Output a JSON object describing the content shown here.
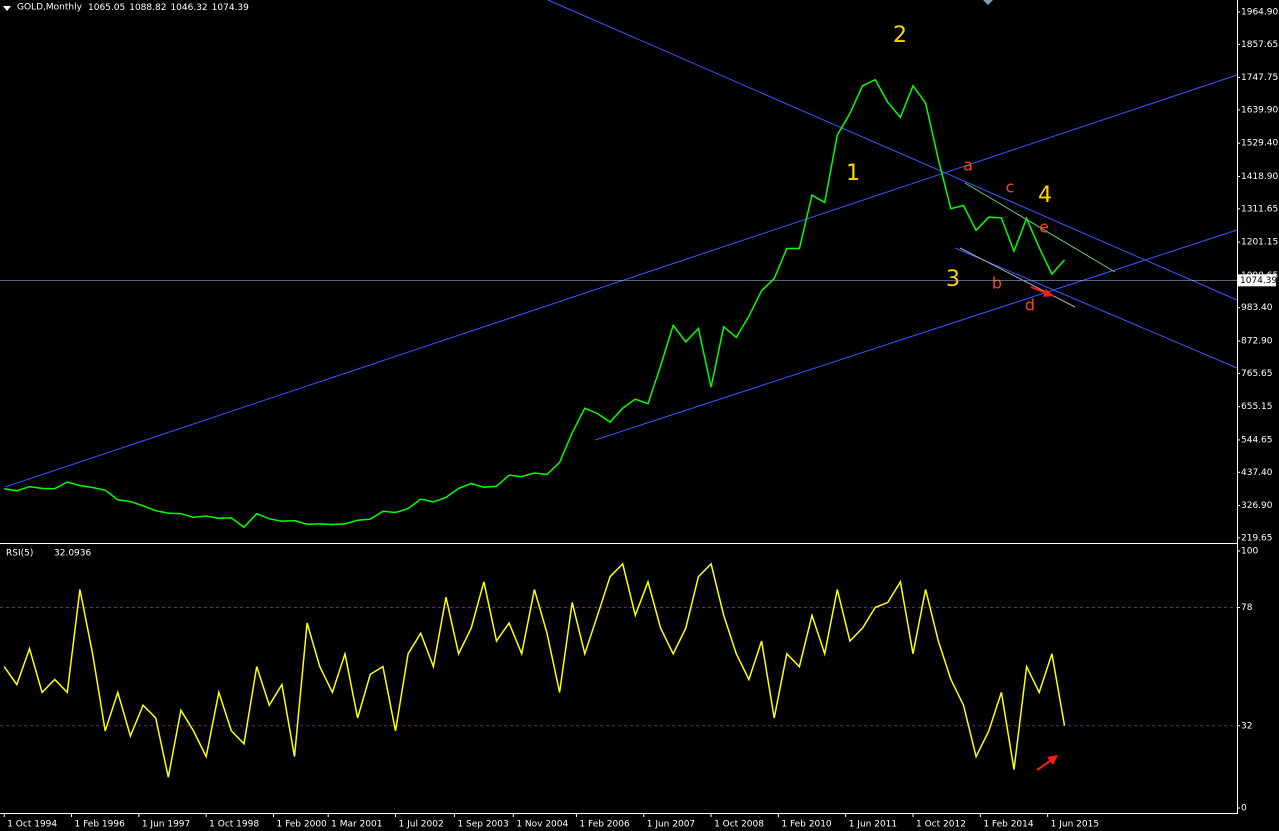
{
  "chart_data": [
    {
      "type": "line",
      "title": "GOLD,Monthly",
      "ohlc": [
        1065.05,
        1088.82,
        1046.32,
        1074.39
      ],
      "x": [
        0,
        3,
        6,
        9,
        12,
        15,
        18,
        21,
        24,
        27,
        30,
        33,
        36,
        39,
        42,
        45,
        48,
        51,
        54,
        57,
        60,
        63,
        66,
        69,
        72,
        75,
        78,
        81,
        84,
        87,
        90,
        93,
        96,
        99,
        102,
        105,
        108,
        111,
        114,
        117,
        120,
        123,
        126,
        129,
        132,
        135,
        138,
        141,
        144,
        147,
        150,
        153,
        156,
        159,
        162,
        165,
        168,
        171,
        174,
        177,
        180,
        183,
        186,
        189,
        192,
        195,
        198,
        201,
        204,
        207,
        210,
        213,
        216,
        219,
        222,
        225,
        228,
        231,
        234,
        237,
        240,
        243,
        246,
        249,
        252
      ],
      "series": [
        {
          "color": "#00ff00",
          "values": [
            383,
            376,
            390,
            384,
            383,
            405,
            393,
            387,
            378,
            346,
            340,
            326,
            310,
            302,
            300,
            288,
            292,
            285,
            286,
            255,
            300,
            283,
            275,
            277,
            265,
            266,
            264,
            266,
            278,
            282,
            308,
            304,
            317,
            348,
            339,
            354,
            384,
            400,
            388,
            391,
            428,
            423,
            435,
            430,
            470,
            568,
            650,
            632,
            604,
            650,
            680,
            665,
            790,
            925,
            870,
            915,
            720,
            920,
            885,
            955,
            1040,
            1080,
            1180,
            1180,
            1357,
            1333,
            1556,
            1628,
            1720,
            1740,
            1665,
            1615,
            1720,
            1663,
            1476,
            1312,
            1323,
            1240,
            1284,
            1282,
            1171,
            1280,
            1183,
            1095,
            1142
          ]
        }
      ],
      "xlim": [
        -1,
        293
      ],
      "ylim": [
        206,
        1998
      ],
      "yticks": [
        {
          "value": 1964.9,
          "label": "1964.90"
        },
        1857.65,
        1747.75,
        {
          "value": 1639.9,
          "label": "1639.90"
        },
        {
          "value": 1529.4,
          "label": "1529.40"
        },
        {
          "value": 1418.9,
          "label": "1418.90"
        },
        1311.65,
        1201.15,
        1090.65,
        {
          "value": 983.4,
          "label": "983.40"
        },
        {
          "value": 872.9,
          "label": "872.90"
        },
        765.65,
        655.15,
        544.65,
        {
          "value": 437.4,
          "label": "437.40"
        },
        {
          "value": 326.9,
          "label": "326.90"
        },
        219.65
      ],
      "annotations": [
        "1",
        "2",
        "3",
        "4",
        "a",
        "b",
        "c",
        "d",
        "e"
      ]
    },
    {
      "type": "line",
      "title": "RSI(5)",
      "x": [
        0,
        3,
        6,
        9,
        12,
        15,
        18,
        21,
        24,
        27,
        30,
        33,
        36,
        39,
        42,
        45,
        48,
        51,
        54,
        57,
        60,
        63,
        66,
        69,
        72,
        75,
        78,
        81,
        84,
        87,
        90,
        93,
        96,
        99,
        102,
        105,
        108,
        111,
        114,
        117,
        120,
        123,
        126,
        129,
        132,
        135,
        138,
        141,
        144,
        147,
        150,
        153,
        156,
        159,
        162,
        165,
        168,
        171,
        174,
        177,
        180,
        183,
        186,
        189,
        192,
        195,
        198,
        201,
        204,
        207,
        210,
        213,
        216,
        219,
        222,
        225,
        228,
        231,
        234,
        237,
        240,
        243,
        246,
        249,
        252
      ],
      "series": [
        {
          "color": "#ffff00",
          "values": [
            55,
            48,
            62,
            45,
            50,
            45,
            85,
            60,
            30,
            45,
            28,
            40,
            35,
            12,
            38,
            30,
            20,
            45,
            30,
            25,
            55,
            40,
            48,
            20,
            72,
            55,
            45,
            60,
            35,
            52,
            55,
            30,
            60,
            68,
            55,
            82,
            60,
            70,
            88,
            65,
            72,
            60,
            85,
            68,
            45,
            80,
            60,
            75,
            90,
            95,
            75,
            88,
            70,
            60,
            70,
            90,
            95,
            75,
            60,
            50,
            65,
            35,
            60,
            55,
            75,
            60,
            85,
            65,
            70,
            78,
            80,
            88,
            60,
            85,
            65,
            50,
            40,
            20,
            30,
            45,
            15,
            55,
            45,
            60,
            32.0936
          ]
        }
      ],
      "xlim": [
        -1,
        293
      ],
      "ylim": [
        0,
        100
      ],
      "yticks": [
        0,
        32,
        78,
        100
      ],
      "xticks": [
        {
          "value": 0,
          "label": "1 Oct 1994"
        },
        {
          "value": 16,
          "label": "1 Feb 1996"
        },
        {
          "value": 32,
          "label": "1 Jun 1997"
        },
        {
          "value": 48,
          "label": "1 Oct 1998"
        },
        {
          "value": 64,
          "label": "1 Feb 2000"
        },
        {
          "value": 77,
          "label": "1 Mar 2001"
        },
        {
          "value": 93,
          "label": "1 Jul 2002"
        },
        {
          "value": 107,
          "label": "1 Sep 2003"
        },
        {
          "value": 121,
          "label": "1 Nov 2004"
        },
        {
          "value": 136,
          "label": "1 Feb 2006"
        },
        {
          "value": 152,
          "label": "1 Jun 2007"
        },
        {
          "value": 168,
          "label": "1 Oct 2008"
        },
        {
          "value": 184,
          "label": "1 Feb 2010"
        },
        {
          "value": 200,
          "label": "1 Jun 2011"
        },
        {
          "value": 216,
          "label": "1 Oct 2012"
        },
        {
          "value": 232,
          "label": "1 Feb 2014"
        },
        {
          "value": 248,
          "label": "1 Jun 2015"
        }
      ]
    }
  ]
}
